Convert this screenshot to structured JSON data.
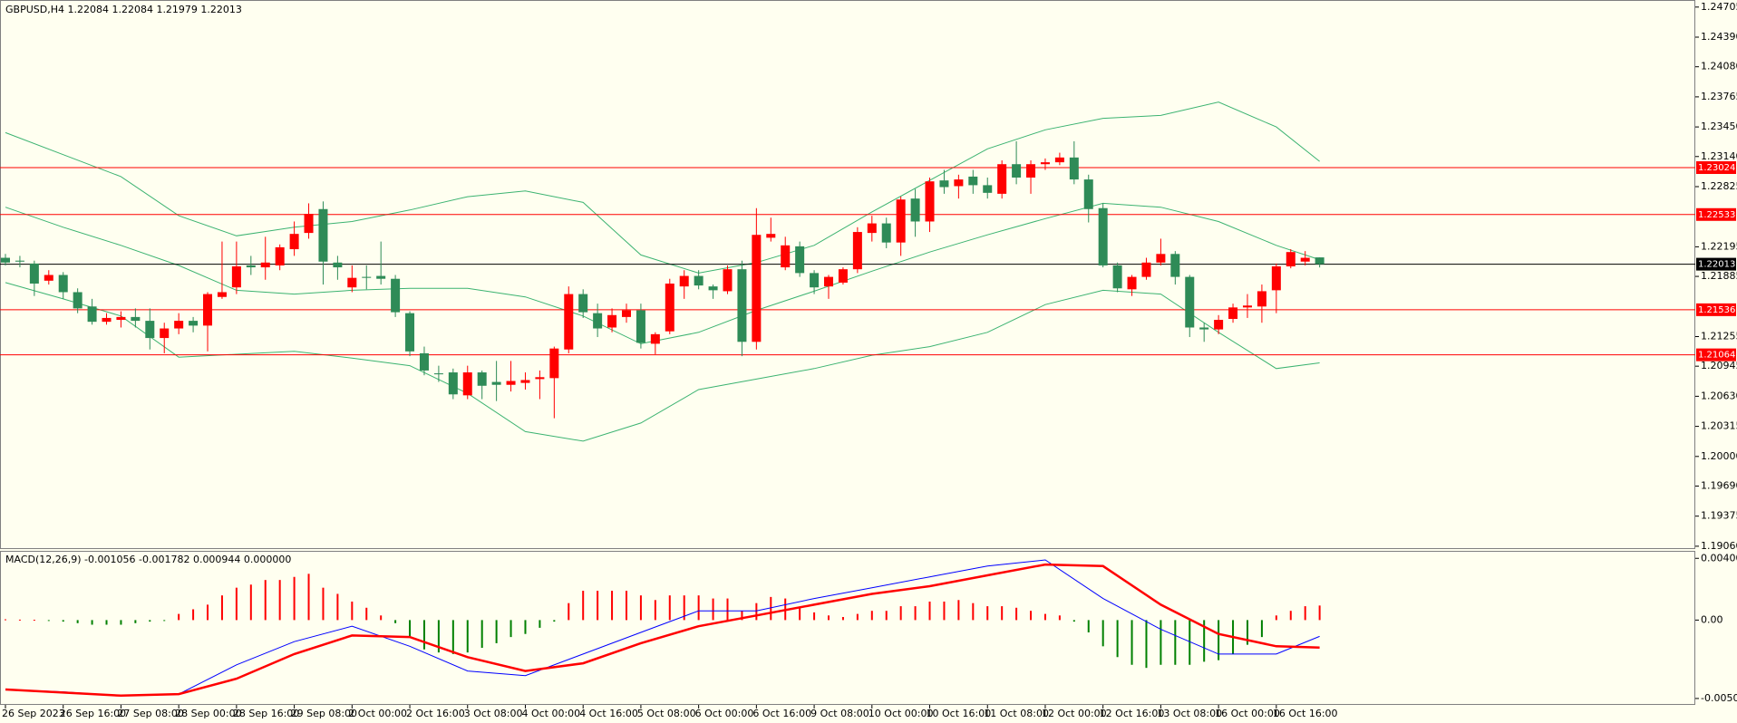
{
  "chart_data": [
    {
      "type": "candlestick",
      "title": "GBPUSD,H4  1.22084 1.22084 1.21979 1.22013",
      "categories": [
        "26 Sep 2023",
        null,
        null,
        null,
        "26 Sep 16:00",
        null,
        null,
        null,
        "27 Sep 08:00",
        null,
        null,
        null,
        "28 Sep 00:00",
        null,
        null,
        null,
        "28 Sep 16:00",
        null,
        null,
        null,
        "29 Sep 08:00",
        null,
        null,
        null,
        "2 Oct 00:00",
        null,
        null,
        null,
        "2 Oct 16:00",
        null,
        null,
        null,
        "3 Oct 08:00",
        null,
        null,
        null,
        "4 Oct 00:00",
        null,
        null,
        null,
        "4 Oct 16:00",
        null,
        null,
        null,
        "5 Oct 08:00",
        null,
        null,
        null,
        "6 Oct 00:00",
        null,
        null,
        null,
        "6 Oct 16:00",
        null,
        null,
        null,
        "9 Oct 08:00",
        null,
        null,
        null,
        "10 Oct 00:00",
        null,
        null,
        null,
        "10 Oct 16:00",
        null,
        null,
        null,
        "11 Oct 08:00",
        null,
        null,
        null,
        "12 Oct 00:00",
        null,
        null,
        null,
        "12 Oct 16:00",
        null,
        null,
        null,
        "13 Oct 08:00",
        null,
        null,
        null,
        "16 Oct 00:00",
        null,
        null,
        null,
        "16 Oct 16:00",
        null,
        null,
        null
      ],
      "open": [
        1.2208,
        1.2205,
        1.2202,
        1.2184,
        1.219,
        1.2172,
        1.2157,
        1.2141,
        1.2143,
        1.2146,
        1.2142,
        1.2124,
        1.2134,
        1.2142,
        1.2137,
        1.2167,
        1.2177,
        1.22,
        1.2198,
        1.22,
        1.2217,
        1.2234,
        1.2259,
        1.2203,
        1.2177,
        1.2188,
        1.2189,
        1.2186,
        1.215,
        1.2108,
        1.2087,
        1.2088,
        1.2064,
        1.2088,
        1.2078,
        1.2075,
        1.2077,
        1.2081,
        1.2082,
        1.2112,
        1.217,
        1.215,
        1.2135,
        1.2146,
        1.2153,
        1.2118,
        1.2131,
        1.2178,
        1.2189,
        1.2178,
        1.2173,
        1.2196,
        1.212,
        1.2229,
        1.2198,
        1.222,
        1.2192,
        1.2178,
        1.2182,
        1.2196,
        1.2234,
        1.2244,
        1.2224,
        1.227,
        1.2246,
        1.2289,
        1.2283,
        1.2293,
        1.2284,
        1.2275,
        1.2306,
        1.2292,
        1.2306,
        1.2308,
        1.2313,
        1.229,
        1.226,
        1.22,
        1.2175,
        1.2188,
        1.2203,
        1.2212,
        1.2188,
        1.2135,
        1.2133,
        1.2144,
        1.2156,
        1.2157,
        1.2174,
        1.2199,
        1.2204,
        1.22084
      ],
      "high": [
        1.2212,
        1.221,
        1.2205,
        1.2195,
        1.2193,
        1.2176,
        1.2165,
        1.215,
        1.2152,
        1.2155,
        1.2155,
        1.214,
        1.215,
        1.2146,
        1.2172,
        1.2225,
        1.2225,
        1.221,
        1.223,
        1.2222,
        1.2246,
        1.2265,
        1.2267,
        1.221,
        1.22,
        1.22,
        1.2225,
        1.219,
        1.2152,
        1.2115,
        1.2095,
        1.2092,
        1.2095,
        1.209,
        1.21,
        1.21,
        1.2088,
        1.209,
        1.2115,
        1.2178,
        1.2175,
        1.216,
        1.2155,
        1.216,
        1.216,
        1.213,
        1.2186,
        1.2195,
        1.2195,
        1.218,
        1.22,
        1.2205,
        1.226,
        1.225,
        1.223,
        1.2225,
        1.2195,
        1.219,
        1.2198,
        1.224,
        1.2252,
        1.225,
        1.2272,
        1.228,
        1.2292,
        1.23,
        1.2295,
        1.23,
        1.2292,
        1.231,
        1.233,
        1.231,
        1.2312,
        1.2318,
        1.233,
        1.2295,
        1.2265,
        1.2203,
        1.219,
        1.2208,
        1.2228,
        1.2215,
        1.219,
        1.214,
        1.2148,
        1.216,
        1.217,
        1.218,
        1.2202,
        1.2217,
        1.2215,
        1.22084
      ],
      "low": [
        1.22,
        1.2198,
        1.2168,
        1.218,
        1.2165,
        1.215,
        1.2138,
        1.2138,
        1.2135,
        1.2135,
        1.2112,
        1.2108,
        1.2128,
        1.213,
        1.211,
        1.2165,
        1.217,
        1.219,
        1.2185,
        1.2195,
        1.221,
        1.2228,
        1.218,
        1.2185,
        1.2172,
        1.2175,
        1.218,
        1.2146,
        1.2105,
        1.2085,
        1.2078,
        1.206,
        1.206,
        1.206,
        1.2058,
        1.2068,
        1.207,
        1.206,
        1.204,
        1.2108,
        1.2145,
        1.2125,
        1.213,
        1.214,
        1.2113,
        1.2107,
        1.2128,
        1.2165,
        1.2175,
        1.2165,
        1.217,
        1.2105,
        1.2112,
        1.2225,
        1.2195,
        1.2188,
        1.217,
        1.2165,
        1.218,
        1.2192,
        1.2225,
        1.2218,
        1.221,
        1.223,
        1.2235,
        1.2275,
        1.227,
        1.2275,
        1.227,
        1.227,
        1.2285,
        1.2275,
        1.23,
        1.2305,
        1.2285,
        1.2245,
        1.2198,
        1.2172,
        1.2168,
        1.2185,
        1.22,
        1.218,
        1.2125,
        1.212,
        1.2128,
        1.214,
        1.2145,
        1.214,
        1.215,
        1.2197,
        1.22,
        1.21979
      ],
      "close": [
        1.2203,
        1.2204,
        1.2181,
        1.219,
        1.2172,
        1.2155,
        1.2141,
        1.2145,
        1.2146,
        1.2142,
        1.2124,
        1.2134,
        1.2142,
        1.2137,
        1.217,
        1.2172,
        1.2199,
        1.2198,
        1.2203,
        1.2219,
        1.2233,
        1.2254,
        1.2204,
        1.2198,
        1.2187,
        1.2187,
        1.2186,
        1.2151,
        1.211,
        1.209,
        1.2086,
        1.2065,
        1.2088,
        1.2074,
        1.2075,
        1.2079,
        1.208,
        1.2083,
        1.2113,
        1.217,
        1.2151,
        1.2134,
        1.2148,
        1.2153,
        1.2119,
        1.2128,
        1.2181,
        1.2189,
        1.2179,
        1.2174,
        1.2196,
        1.212,
        1.2232,
        1.2233,
        1.2221,
        1.2192,
        1.2177,
        1.2188,
        1.2196,
        1.2235,
        1.2244,
        1.2224,
        1.2269,
        1.2246,
        1.2288,
        1.2282,
        1.229,
        1.2284,
        1.2276,
        1.2306,
        1.2292,
        1.2306,
        1.2308,
        1.2313,
        1.229,
        1.2259,
        1.22,
        1.2176,
        1.2188,
        1.2203,
        1.2212,
        1.2188,
        1.2135,
        1.2133,
        1.2143,
        1.2156,
        1.2158,
        1.2173,
        1.2199,
        1.2214,
        1.2208,
        1.22013
      ],
      "up_color": "#ff0000",
      "down_color": "#2e8b57",
      "lines": [
        {
          "color": "#3cb371",
          "x": [
            0,
            4,
            8,
            12,
            16,
            20,
            24,
            28,
            32,
            36,
            40,
            44,
            48,
            52,
            56,
            60,
            64,
            68,
            72,
            76,
            80,
            84,
            88,
            91
          ],
          "values": [
            1.2339,
            1.2316,
            1.2293,
            1.2252,
            1.2231,
            1.224,
            1.2246,
            1.2258,
            1.2272,
            1.2278,
            1.2266,
            1.2211,
            1.2192,
            1.2203,
            1.2221,
            1.2256,
            1.2289,
            1.2322,
            1.2342,
            1.2354,
            1.2357,
            1.2371,
            1.2345,
            1.2309
          ]
        },
        {
          "color": "#3cb371",
          "x": [
            0,
            4,
            8,
            12,
            16,
            20,
            24,
            28,
            32,
            36,
            40,
            44,
            48,
            52,
            56,
            60,
            64,
            68,
            72,
            76,
            80,
            84,
            88,
            91
          ],
          "values": [
            1.2261,
            1.224,
            1.2221,
            1.22,
            1.2174,
            1.217,
            1.2174,
            1.2176,
            1.2176,
            1.2167,
            1.2147,
            1.2118,
            1.213,
            1.2153,
            1.2173,
            1.2194,
            1.2214,
            1.2232,
            1.2249,
            1.2265,
            1.2261,
            1.2246,
            1.2221,
            1.2206
          ]
        },
        {
          "color": "#3cb371",
          "x": [
            0,
            4,
            8,
            12,
            16,
            20,
            24,
            28,
            32,
            36,
            40,
            44,
            48,
            52,
            56,
            60,
            64,
            68,
            72,
            76,
            80,
            84,
            88,
            91
          ],
          "values": [
            1.2182,
            1.2165,
            1.2147,
            1.2104,
            1.2107,
            1.211,
            1.2103,
            1.2095,
            1.2066,
            1.2026,
            1.2016,
            1.2035,
            1.207,
            1.2081,
            1.2092,
            1.2106,
            1.2115,
            1.213,
            1.2159,
            1.2174,
            1.217,
            1.213,
            1.2092,
            1.2098
          ]
        }
      ],
      "levels": [
        {
          "value": 1.23024,
          "color": "#ff0000"
        },
        {
          "value": 1.22533,
          "color": "#ff0000"
        },
        {
          "value": 1.22013,
          "color": "#000000"
        },
        {
          "value": 1.21536,
          "color": "#ff0000"
        },
        {
          "value": 1.21064,
          "color": "#ff0000"
        }
      ],
      "ylim": [
        1.1904,
        1.2476
      ],
      "yticks": [
        1.24705,
        {
          "value": 1.2439,
          "label": "1.24390"
        },
        {
          "value": 1.2408,
          "label": "1.24080"
        },
        1.23765,
        {
          "value": 1.2345,
          "label": "1.23450"
        },
        {
          "value": 1.2314,
          "label": "1.23140"
        },
        1.22825,
        1.22195,
        1.21885,
        1.21255,
        1.20945,
        {
          "value": 1.2063,
          "label": "1.20630"
        },
        1.20315,
        {
          "value": 1.2,
          "label": "1.20000"
        },
        {
          "value": 1.1969,
          "label": "1.19690"
        },
        1.19375,
        {
          "value": 1.1906,
          "label": "1.19060"
        }
      ]
    },
    {
      "type": "macd",
      "title": "MACD(12,26,9) -0.001056 -0.001782 0.000944 0.000000",
      "histogram": [
        5e-05,
        3e-05,
        2e-05,
        -2e-05,
        -0.0001,
        -0.0002,
        -0.0003,
        -0.0003,
        -0.0003,
        -0.0002,
        -0.0001,
        -5e-05,
        0.0004,
        0.0007,
        0.001,
        0.0016,
        0.0021,
        0.0023,
        0.0026,
        0.0026,
        0.0028,
        0.003,
        0.0021,
        0.0017,
        0.0012,
        0.0008,
        0.0003,
        -0.0002,
        -0.0011,
        -0.0019,
        -0.0021,
        -0.0022,
        -0.0021,
        -0.0018,
        -0.0015,
        -0.0011,
        -0.0009,
        -0.0005,
        -0.0001,
        0.0011,
        0.0019,
        0.0019,
        0.0019,
        0.0019,
        0.0016,
        0.0013,
        0.0016,
        0.0016,
        0.0016,
        0.0014,
        0.0014,
        0.0006,
        0.0011,
        0.0015,
        0.0014,
        0.0008,
        0.0005,
        0.0003,
        0.0002,
        0.0004,
        0.0006,
        0.0006,
        0.0009,
        0.0009,
        0.0012,
        0.0012,
        0.0013,
        0.0011,
        0.0009,
        0.0009,
        0.0008,
        0.0006,
        0.0004,
        0.0003,
        -0.0001,
        -0.0008,
        -0.0017,
        -0.0024,
        -0.0029,
        -0.0031,
        -0.0029,
        -0.0029,
        -0.0029,
        -0.0027,
        -0.0026,
        -0.0022,
        -0.0016,
        -0.0011,
        0.0003,
        0.0006,
        0.0009,
        0.000944
      ],
      "positive_color": "#ff0000",
      "negative_color": "#008000",
      "lines": [
        {
          "color": "#0000ff",
          "width": 1,
          "x": [
            0,
            4,
            8,
            12,
            16,
            20,
            24,
            28,
            32,
            36,
            40,
            44,
            48,
            52,
            56,
            60,
            64,
            68,
            72,
            76,
            80,
            84,
            88,
            91
          ],
          "values": [
            -0.0045,
            -0.00465,
            -0.0049,
            -0.0048,
            -0.0029,
            -0.0014,
            -0.0004,
            -0.0017,
            -0.0033,
            -0.0036,
            -0.0022,
            -0.0008,
            0.0006,
            0.0006,
            0.0014,
            0.0021,
            0.0028,
            0.0035,
            0.0039,
            0.0014,
            -0.0006,
            -0.0022,
            -0.0022,
            -0.001056
          ]
        },
        {
          "color": "#ff0000",
          "width": 2.5,
          "x": [
            0,
            4,
            8,
            12,
            16,
            20,
            24,
            28,
            32,
            36,
            40,
            44,
            48,
            52,
            56,
            60,
            64,
            68,
            72,
            76,
            80,
            84,
            88,
            91
          ],
          "values": [
            -0.0045,
            -0.0047,
            -0.0049,
            -0.0048,
            -0.0038,
            -0.0022,
            -0.001,
            -0.0011,
            -0.0024,
            -0.0033,
            -0.0028,
            -0.0015,
            -0.0004,
            0.0003,
            0.001,
            0.0017,
            0.0022,
            0.0029,
            0.0036,
            0.0035,
            0.001,
            -0.0009,
            -0.0017,
            -0.001782
          ]
        }
      ],
      "ylim": [
        -0.00544,
        0.00443
      ],
      "yticks": [
        0.004004,
        {
          "value": 0,
          "label": "0.00"
        },
        -0.005084
      ]
    }
  ]
}
